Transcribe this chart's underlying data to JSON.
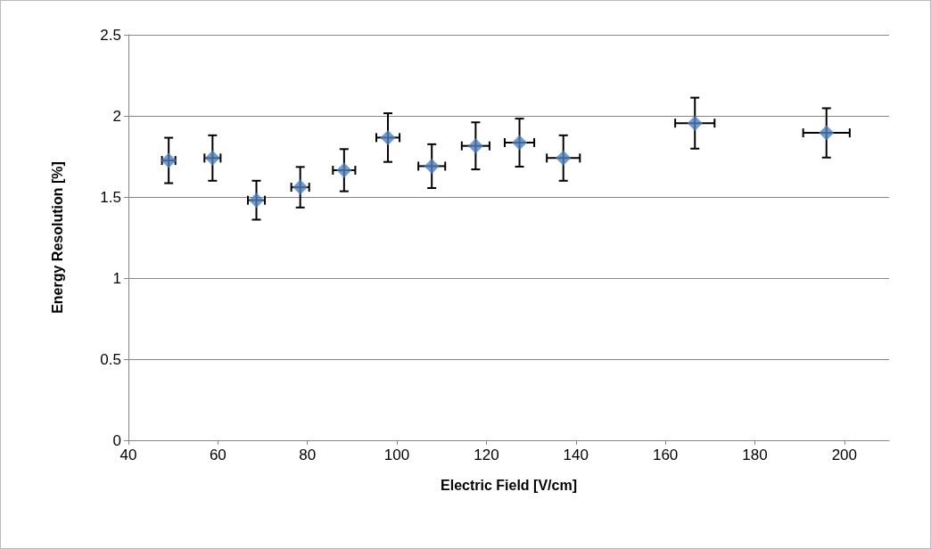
{
  "chart_data": {
    "type": "scatter",
    "xlabel": "Electric Field [V/cm]",
    "ylabel": "Energy Resolution [%]",
    "x": [
      49,
      58.8,
      68.6,
      78.4,
      88.2,
      98,
      107.8,
      117.6,
      127.4,
      137.2,
      166.6,
      196
    ],
    "series": [
      {
        "color": "#4f81bd",
        "values": [
          1.725,
          1.74,
          1.48,
          1.56,
          1.665,
          1.866,
          1.69,
          1.815,
          1.835,
          1.74,
          1.955,
          1.895
        ],
        "errors": [
          0.14,
          0.14,
          0.12,
          0.125,
          0.13,
          0.15,
          0.135,
          0.145,
          0.148,
          0.14,
          0.157,
          0.152
        ],
        "xerrors": [
          1.5,
          1.8,
          1.9,
          2,
          2.5,
          2.6,
          3,
          3.1,
          3.3,
          3.7,
          4.4,
          5.2
        ]
      }
    ],
    "xlim": [
      40,
      210
    ],
    "xticks": [
      40,
      60,
      80,
      100,
      120,
      140,
      160,
      180,
      200
    ],
    "ylim": [
      0,
      2.5
    ],
    "yticks": [
      0,
      0.5,
      1,
      1.5,
      2,
      2.5
    ],
    "grid": "y",
    "marker": "diamond"
  }
}
